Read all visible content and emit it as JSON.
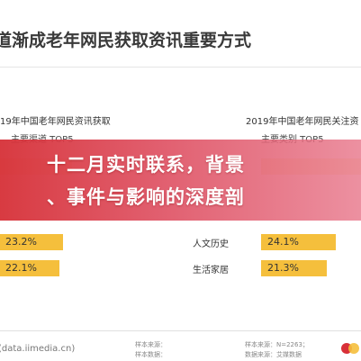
{
  "page": {
    "title": "道渐成老年网民获取资讯重要方式"
  },
  "overlay": {
    "line1": "十二月实时联系，背景",
    "line2": "、事件与影响的深度剖"
  },
  "colors": {
    "bar": "#f5bf3c",
    "banner": "#d83038"
  },
  "chart_data": [
    {
      "type": "bar",
      "title": "19年中国老年网民资讯获取",
      "subtitle": "主要渠道 TOP5",
      "categories": [
        "",
        ""
      ],
      "values": [
        23.2,
        22.1
      ],
      "value_labels": [
        "23.2%",
        "22.1%"
      ],
      "xlim": [
        0,
        35
      ]
    },
    {
      "type": "bar",
      "title": "2019年中国老年网民关注资",
      "subtitle": "主要类别 TOP5",
      "categories": [
        "人文历史",
        "生活家居"
      ],
      "values": [
        24.1,
        21.3
      ],
      "value_labels": [
        "24.1%",
        "21.3%"
      ],
      "xlim": [
        0,
        35
      ]
    }
  ],
  "footer": {
    "brand": "(data.iimedia.cn)",
    "note_left_1": "样本来源：",
    "note_left_2": "样本数据：",
    "note_right_1": "样本来源：N=2263；",
    "note_right_2": "数据来源：艾媒数据"
  }
}
